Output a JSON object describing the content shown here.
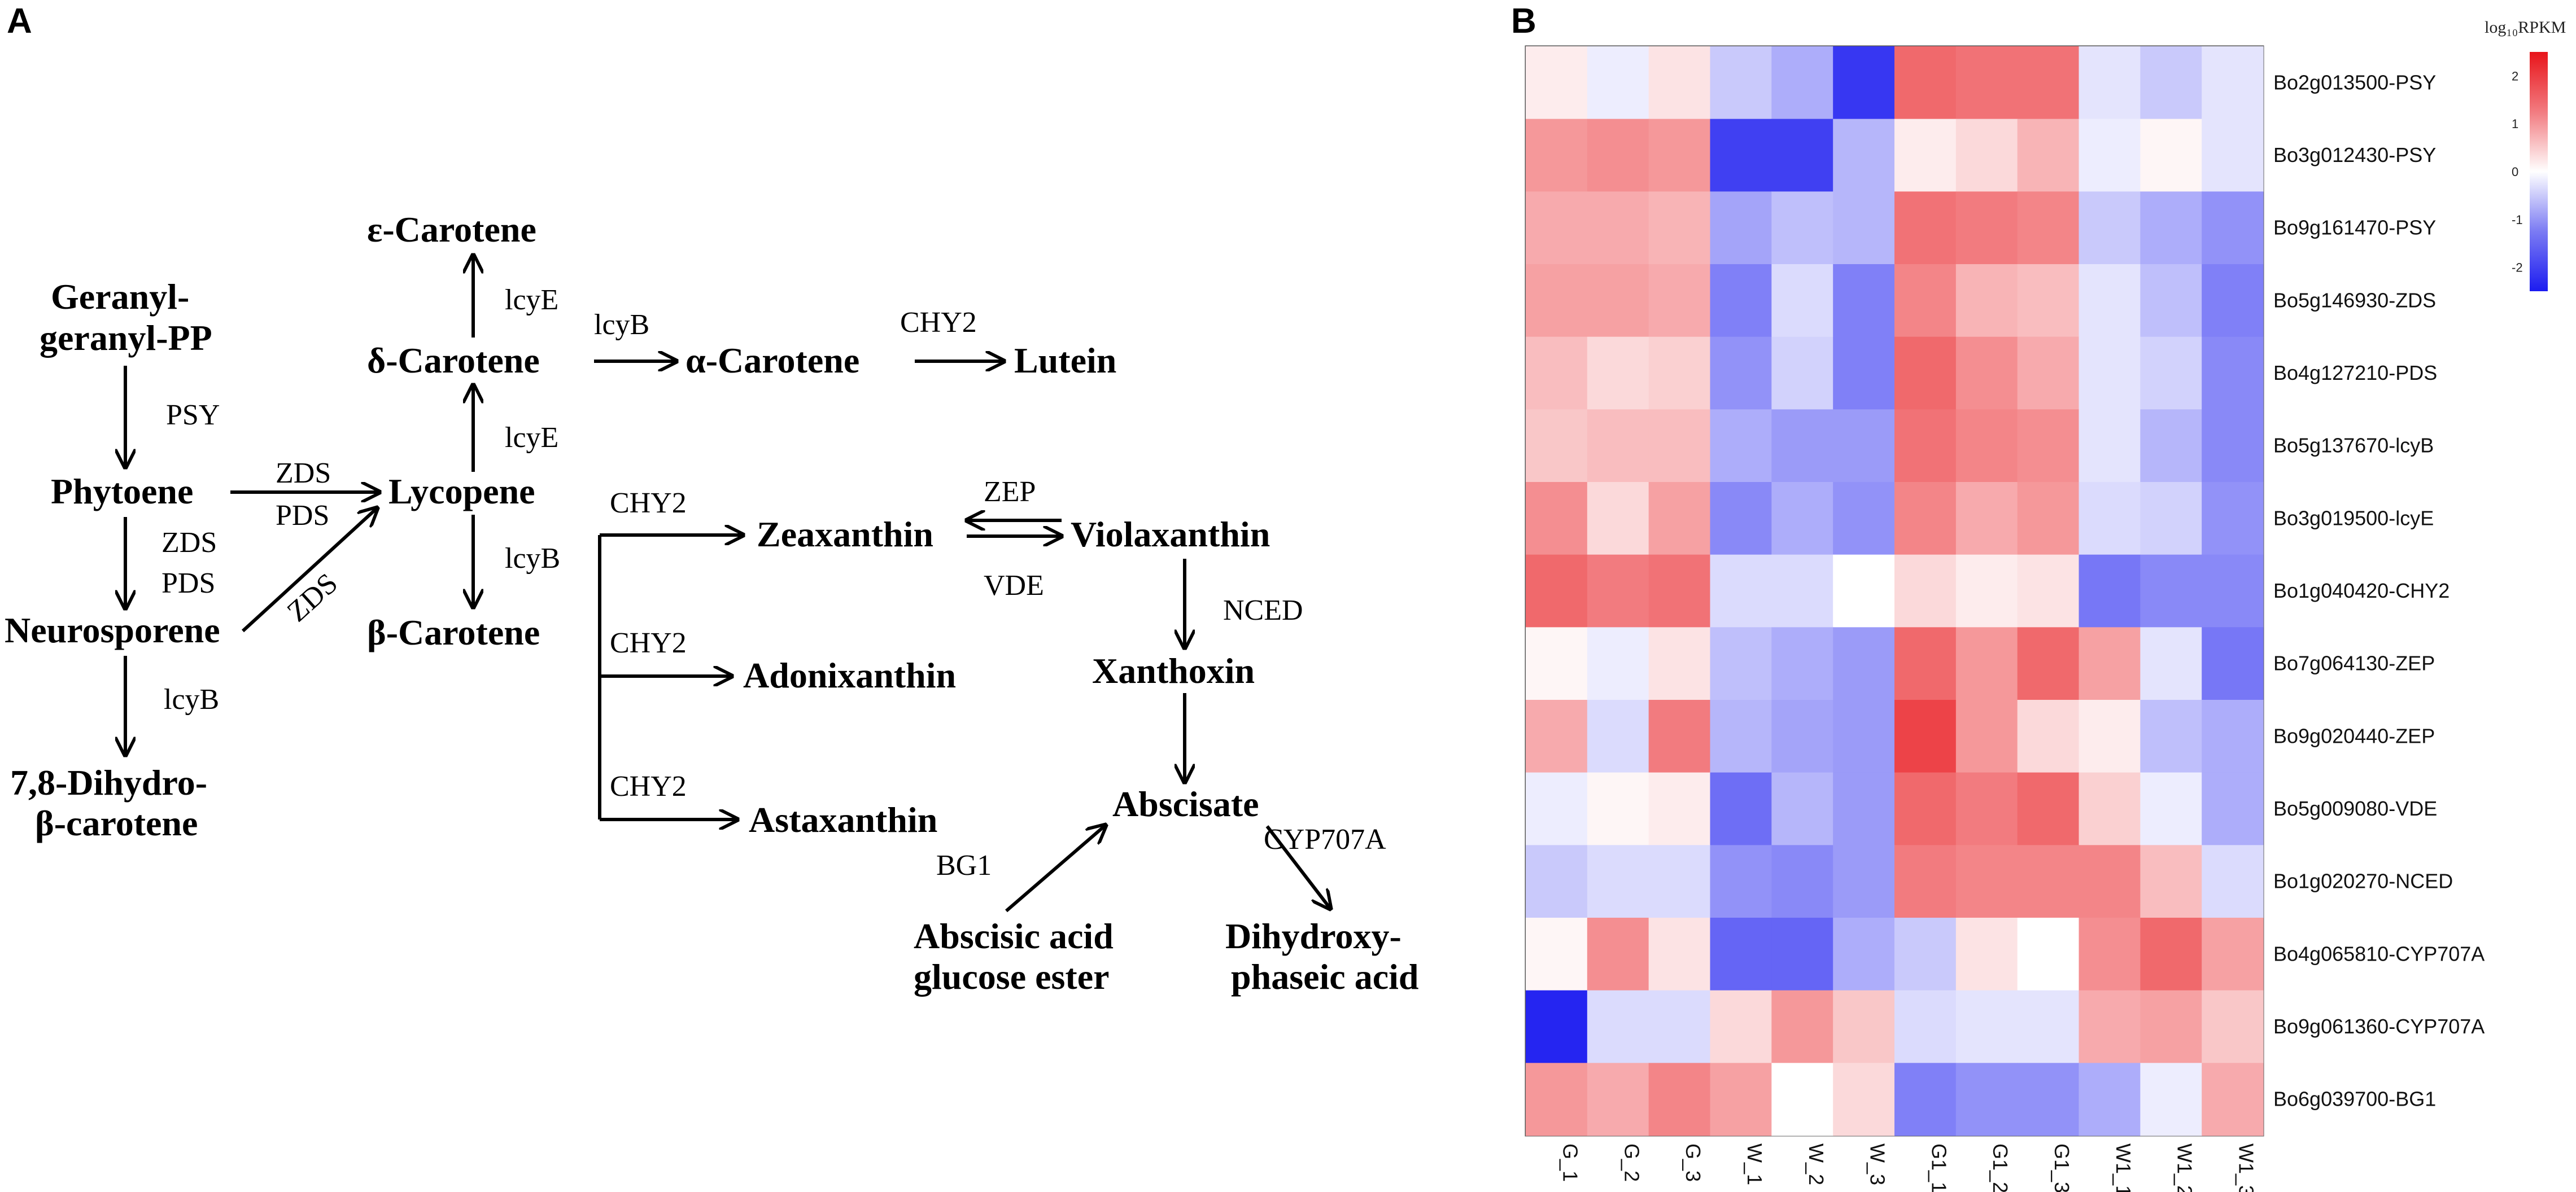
{
  "panels": {
    "a": "A",
    "b": "B"
  },
  "pathway": {
    "nodes": {
      "ggpp_1": "Geranyl-",
      "ggpp_2": "geranyl-PP",
      "phytoene": "Phytoene",
      "neurosporene": "Neurosporene",
      "dihydro_1": "7,8-Dihydro-",
      "dihydro_2": "β-carotene",
      "lycopene": "Lycopene",
      "delta": "δ-Carotene",
      "epsilon": "ε-Carotene",
      "beta": "β-Carotene",
      "alpha": "α-Carotene",
      "lutein": "Lutein",
      "zeaxanthin": "Zeaxanthin",
      "adonixanthin": "Adonixanthin",
      "astaxanthin": "Astaxanthin",
      "violaxanthin": "Violaxanthin",
      "xanthoxin": "Xanthoxin",
      "abscisate": "Abscisate",
      "aage_1": "Abscisic acid",
      "aage_2": "glucose ester",
      "dpa_1": "Dihydroxy-",
      "dpa_2": "phaseic acid"
    },
    "enzymes": {
      "psy": "PSY",
      "zds_top": "ZDS",
      "pds_top": "PDS",
      "zds_down": "ZDS",
      "pds_down": "PDS",
      "zds_diag": "ZDS",
      "lcyb_down": "lcyB",
      "lcye_up1": "lcyE",
      "lcye_up2": "lcyE",
      "lcyb_beta": "lcyB",
      "lcyb_alpha": "lcyB",
      "chy2_lutein": "CHY2",
      "chy2_zea": "CHY2",
      "chy2_ado": "CHY2",
      "chy2_asta": "CHY2",
      "zep": "ZEP",
      "vde": "VDE",
      "nced": "NCED",
      "bg1": "BG1",
      "cyp": "CYP707A"
    }
  },
  "heatmap": {
    "legend_title": "log₁₀RPKM",
    "legend_ticks": [
      "2",
      "1",
      "0",
      "-1",
      "-2"
    ],
    "colors": {
      "high": "#e8141a",
      "mid": "#ffffff",
      "low": "#1c1cf0"
    }
  },
  "chart_data": {
    "type": "heatmap",
    "title": "",
    "scale_label": "log₁₀RPKM",
    "value_range": [
      -2.5,
      2.5
    ],
    "columns": [
      "G_1",
      "G_2",
      "G_3",
      "W_1",
      "W_2",
      "W_3",
      "G1_1",
      "G1_2",
      "G1_3",
      "W1_1",
      "W1_2",
      "W1_3"
    ],
    "rows": [
      "Bo2g013500-PSY",
      "Bo3g012430-PSY",
      "Bo9g161470-PSY",
      "Bo5g146930-ZDS",
      "Bo4g127210-PDS",
      "Bo5g137670-lcyB",
      "Bo3g019500-lcyE",
      "Bo1g040420-CHY2",
      "Bo7g064130-ZEP",
      "Bo9g020440-ZEP",
      "Bo5g009080-VDE",
      "Bo1g020270-NCED",
      "Bo4g065810-CYP707A",
      "Bo9g061360-CYP707A",
      "Bo6g039700-BG1"
    ],
    "values": [
      [
        0.2,
        -0.2,
        0.3,
        -0.6,
        -0.9,
        -2.2,
        1.6,
        1.5,
        1.5,
        -0.3,
        -0.6,
        -0.3
      ],
      [
        1.1,
        1.2,
        1.1,
        -2.1,
        -2.1,
        -0.8,
        0.2,
        0.4,
        0.8,
        -0.2,
        0.1,
        -0.3
      ],
      [
        0.9,
        0.9,
        0.8,
        -1.0,
        -0.7,
        -0.8,
        1.5,
        1.4,
        1.3,
        -0.6,
        -0.9,
        -1.2
      ],
      [
        1.0,
        1.0,
        0.9,
        -1.4,
        -0.4,
        -1.4,
        1.3,
        0.8,
        0.7,
        -0.3,
        -0.7,
        -1.4
      ],
      [
        0.7,
        0.4,
        0.5,
        -1.2,
        -0.5,
        -1.4,
        1.6,
        1.2,
        0.9,
        -0.3,
        -0.5,
        -1.3
      ],
      [
        0.6,
        0.7,
        0.7,
        -0.9,
        -1.1,
        -1.1,
        1.5,
        1.3,
        1.2,
        -0.3,
        -0.8,
        -1.3
      ],
      [
        1.2,
        0.4,
        1.0,
        -1.3,
        -0.9,
        -1.2,
        1.3,
        0.9,
        1.1,
        -0.4,
        -0.5,
        -1.2
      ],
      [
        1.6,
        1.4,
        1.5,
        -0.4,
        -0.4,
        0.0,
        0.4,
        0.2,
        0.3,
        -1.5,
        -1.3,
        -1.3
      ],
      [
        0.1,
        -0.2,
        0.3,
        -0.7,
        -0.9,
        -1.1,
        1.6,
        1.1,
        1.6,
        1.0,
        -0.3,
        -1.5
      ],
      [
        0.9,
        -0.4,
        1.4,
        -0.8,
        -1.0,
        -1.1,
        2.0,
        1.1,
        0.4,
        0.2,
        -0.7,
        -0.9
      ],
      [
        -0.2,
        0.1,
        0.2,
        -1.6,
        -0.8,
        -1.1,
        1.6,
        1.4,
        1.6,
        0.5,
        -0.2,
        -0.9
      ],
      [
        -0.6,
        -0.4,
        -0.4,
        -1.2,
        -1.3,
        -1.1,
        1.4,
        1.3,
        1.3,
        1.3,
        0.7,
        -0.4
      ],
      [
        0.1,
        1.2,
        0.3,
        -1.7,
        -1.7,
        -0.9,
        -0.6,
        0.3,
        0.0,
        1.2,
        1.6,
        1.0
      ],
      [
        -2.4,
        -0.4,
        -0.4,
        0.4,
        1.1,
        0.6,
        -0.4,
        -0.3,
        -0.3,
        0.9,
        1.0,
        0.6
      ],
      [
        1.1,
        0.9,
        1.3,
        1.0,
        0.0,
        0.4,
        -1.4,
        -1.2,
        -1.2,
        -0.9,
        -0.2,
        0.9
      ]
    ]
  }
}
